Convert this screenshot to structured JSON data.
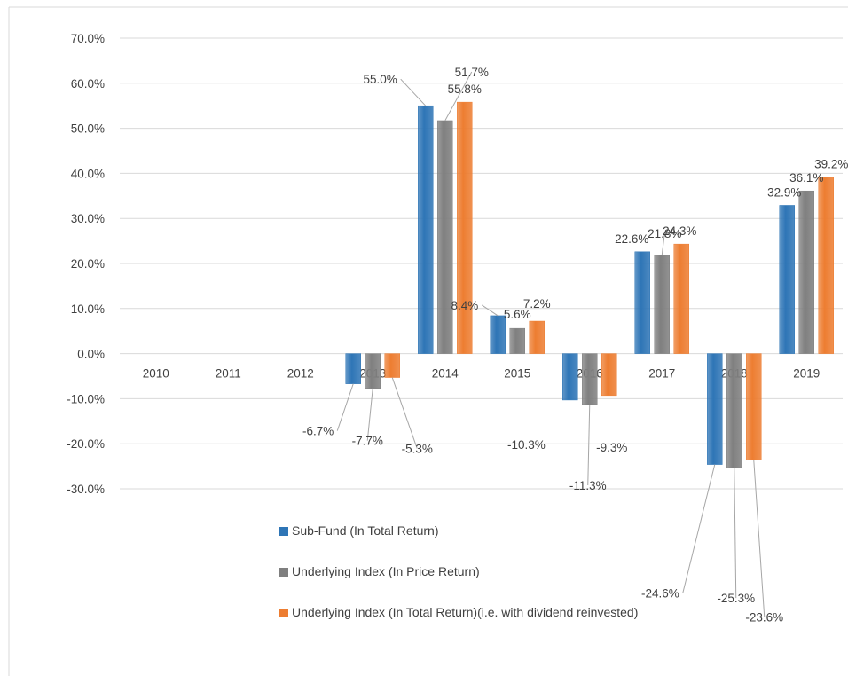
{
  "chart_data": {
    "type": "bar",
    "categories": [
      "2010",
      "2011",
      "2012",
      "2013",
      "2014",
      "2015",
      "2016",
      "2017",
      "2018",
      "2019"
    ],
    "series": [
      {
        "name": "Sub-Fund (In Total Return)",
        "color": "#2E75B6",
        "values": [
          null,
          null,
          null,
          -6.7,
          55.0,
          8.4,
          -10.3,
          22.6,
          -24.6,
          32.9
        ],
        "labels": [
          "",
          "",
          "",
          "-6.7%",
          "55.0%",
          "8.4%",
          "-10.3%",
          "22.6%",
          "-24.6%",
          "32.9%"
        ]
      },
      {
        "name": "Underlying Index (In Price Return)",
        "color": "#7F7F7F",
        "values": [
          null,
          null,
          null,
          -7.7,
          51.7,
          5.6,
          -11.3,
          21.8,
          -25.3,
          36.1
        ],
        "labels": [
          "",
          "",
          "",
          "-7.7%",
          "51.7%",
          "5.6%",
          "-11.3%",
          "21.8%",
          "-25.3%",
          "36.1%"
        ]
      },
      {
        "name": "Underlying Index (In Total Return)(i.e. with dividend reinvested)",
        "color": "#ED7D31",
        "values": [
          null,
          null,
          null,
          -5.3,
          55.8,
          7.2,
          -9.3,
          24.3,
          -23.6,
          39.2
        ],
        "labels": [
          "",
          "",
          "",
          "-5.3%",
          "55.8%",
          "7.2%",
          "-9.3%",
          "24.3%",
          "-23.6%",
          "39.2%"
        ]
      }
    ],
    "y_ticks": [
      "70.0%",
      "60.0%",
      "50.0%",
      "40.0%",
      "30.0%",
      "20.0%",
      "10.0%",
      "0.0%",
      "-10.0%",
      "-20.0%",
      "-30.0%"
    ],
    "ylim": [
      -30,
      70
    ],
    "grid": true,
    "legend_position": "bottom",
    "title": "",
    "xlabel": "",
    "ylabel": ""
  },
  "legend": {
    "items": [
      {
        "label": "Sub-Fund (In Total Return)",
        "color": "#2E75B6"
      },
      {
        "label": "Underlying Index (In Price Return)",
        "color": "#7F7F7F"
      },
      {
        "label": "Underlying Index (In Total Return)(i.e. with dividend reinvested)",
        "color": "#ED7D31"
      }
    ]
  }
}
